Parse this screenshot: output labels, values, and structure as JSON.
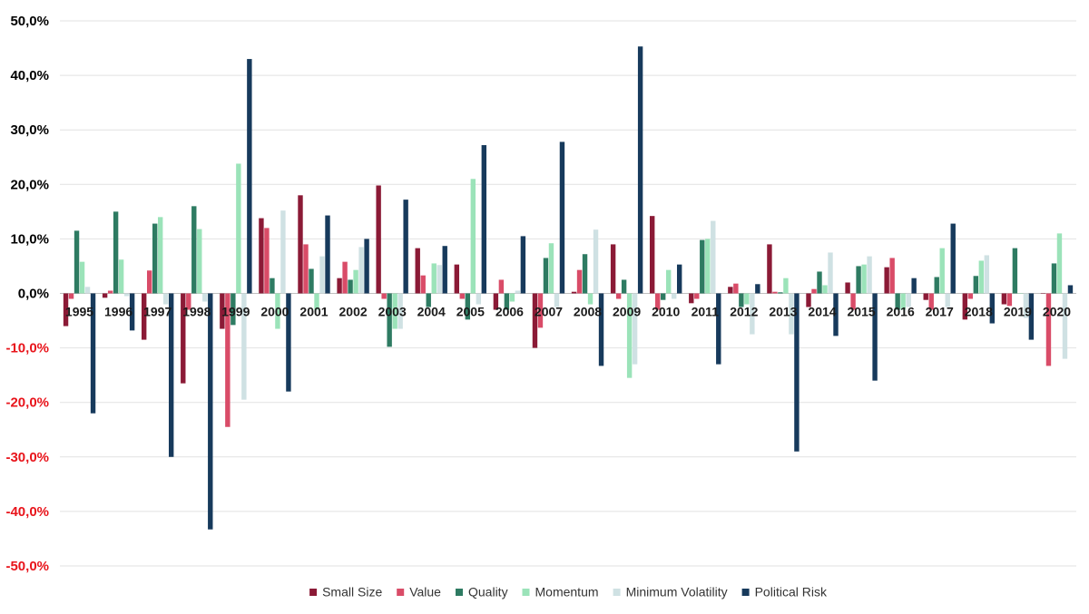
{
  "chart_data": {
    "type": "bar",
    "title": "",
    "xlabel": "",
    "ylabel": "",
    "ylim": [
      -50,
      50
    ],
    "yticks": [
      50,
      40,
      30,
      20,
      10,
      0,
      -10,
      -20,
      -30,
      -40,
      -50
    ],
    "ytick_labels": [
      "50,0%",
      "40,0%",
      "30,0%",
      "20,0%",
      "10,0%",
      "0,0%",
      "-10,0%",
      "-20,0%",
      "-30,0%",
      "-40,0%",
      "-50,0%"
    ],
    "colors": {
      "positive_tick": "#000000",
      "negative_tick": "#e8141b"
    },
    "grid": true,
    "legend_position": "bottom",
    "categories": [
      "1995",
      "1996",
      "1997",
      "1998",
      "1999",
      "2000",
      "2001",
      "2002",
      "2003",
      "2004",
      "2005",
      "2006",
      "2007",
      "2008",
      "2009",
      "2010",
      "2011",
      "2012",
      "2013",
      "2014",
      "2015",
      "2016",
      "2017",
      "2018",
      "2019",
      "2020"
    ],
    "series": [
      {
        "name": "Small Size",
        "color": "#8b1a36",
        "values": [
          -6.0,
          -0.8,
          -8.5,
          -16.5,
          -6.5,
          13.8,
          18.0,
          2.8,
          19.8,
          8.3,
          5.3,
          -3.0,
          -10.0,
          0.3,
          9.0,
          14.2,
          -1.8,
          1.2,
          9.0,
          -2.5,
          2.0,
          4.8,
          -1.2,
          -4.8,
          -2.0,
          0.0
        ]
      },
      {
        "name": "Value",
        "color": "#d94c68",
        "values": [
          -1.0,
          0.5,
          4.2,
          -3.0,
          -24.5,
          12.0,
          9.0,
          5.8,
          -1.0,
          3.3,
          -1.0,
          2.5,
          -6.3,
          4.3,
          -1.0,
          -3.0,
          -1.0,
          1.8,
          0.3,
          0.8,
          -3.0,
          6.5,
          -3.0,
          -1.0,
          -2.3,
          -13.3
        ]
      },
      {
        "name": "Quality",
        "color": "#2e7b62",
        "values": [
          11.5,
          15.0,
          12.8,
          16.0,
          -5.8,
          2.8,
          4.5,
          2.5,
          -9.8,
          -2.5,
          -4.8,
          -3.0,
          6.5,
          7.2,
          2.5,
          -1.2,
          9.8,
          -2.5,
          0.2,
          4.0,
          5.0,
          -3.0,
          3.0,
          3.2,
          8.3,
          5.5
        ]
      },
      {
        "name": "Momentum",
        "color": "#9be3b9",
        "values": [
          5.8,
          6.2,
          14.0,
          11.8,
          23.8,
          -6.5,
          -3.0,
          4.3,
          -6.5,
          5.5,
          21.0,
          -1.5,
          9.2,
          -2.0,
          -15.5,
          4.3,
          10.0,
          -2.0,
          2.8,
          1.5,
          5.3,
          -3.0,
          8.3,
          6.0,
          0.0,
          11.0
        ]
      },
      {
        "name": "Minimum Volatility",
        "color": "#cfe1e3",
        "values": [
          1.2,
          -0.5,
          -2.0,
          -1.5,
          -19.5,
          15.2,
          6.8,
          8.5,
          -6.5,
          5.2,
          -2.0,
          0.5,
          -2.5,
          11.7,
          -13.0,
          -1.0,
          13.3,
          -7.5,
          -7.5,
          7.5,
          6.8,
          -2.5,
          -2.5,
          7.0,
          -4.5,
          -12.0
        ]
      },
      {
        "name": "Political Risk",
        "color": "#173a5c",
        "values": [
          -22.0,
          -6.8,
          -30.0,
          -43.3,
          43.0,
          -18.0,
          14.3,
          10.0,
          17.2,
          8.7,
          27.2,
          10.5,
          27.8,
          -13.3,
          45.3,
          5.3,
          -13.0,
          1.7,
          -29.0,
          -7.8,
          -16.0,
          2.8,
          12.8,
          -5.5,
          -8.5,
          1.5
        ]
      }
    ]
  }
}
